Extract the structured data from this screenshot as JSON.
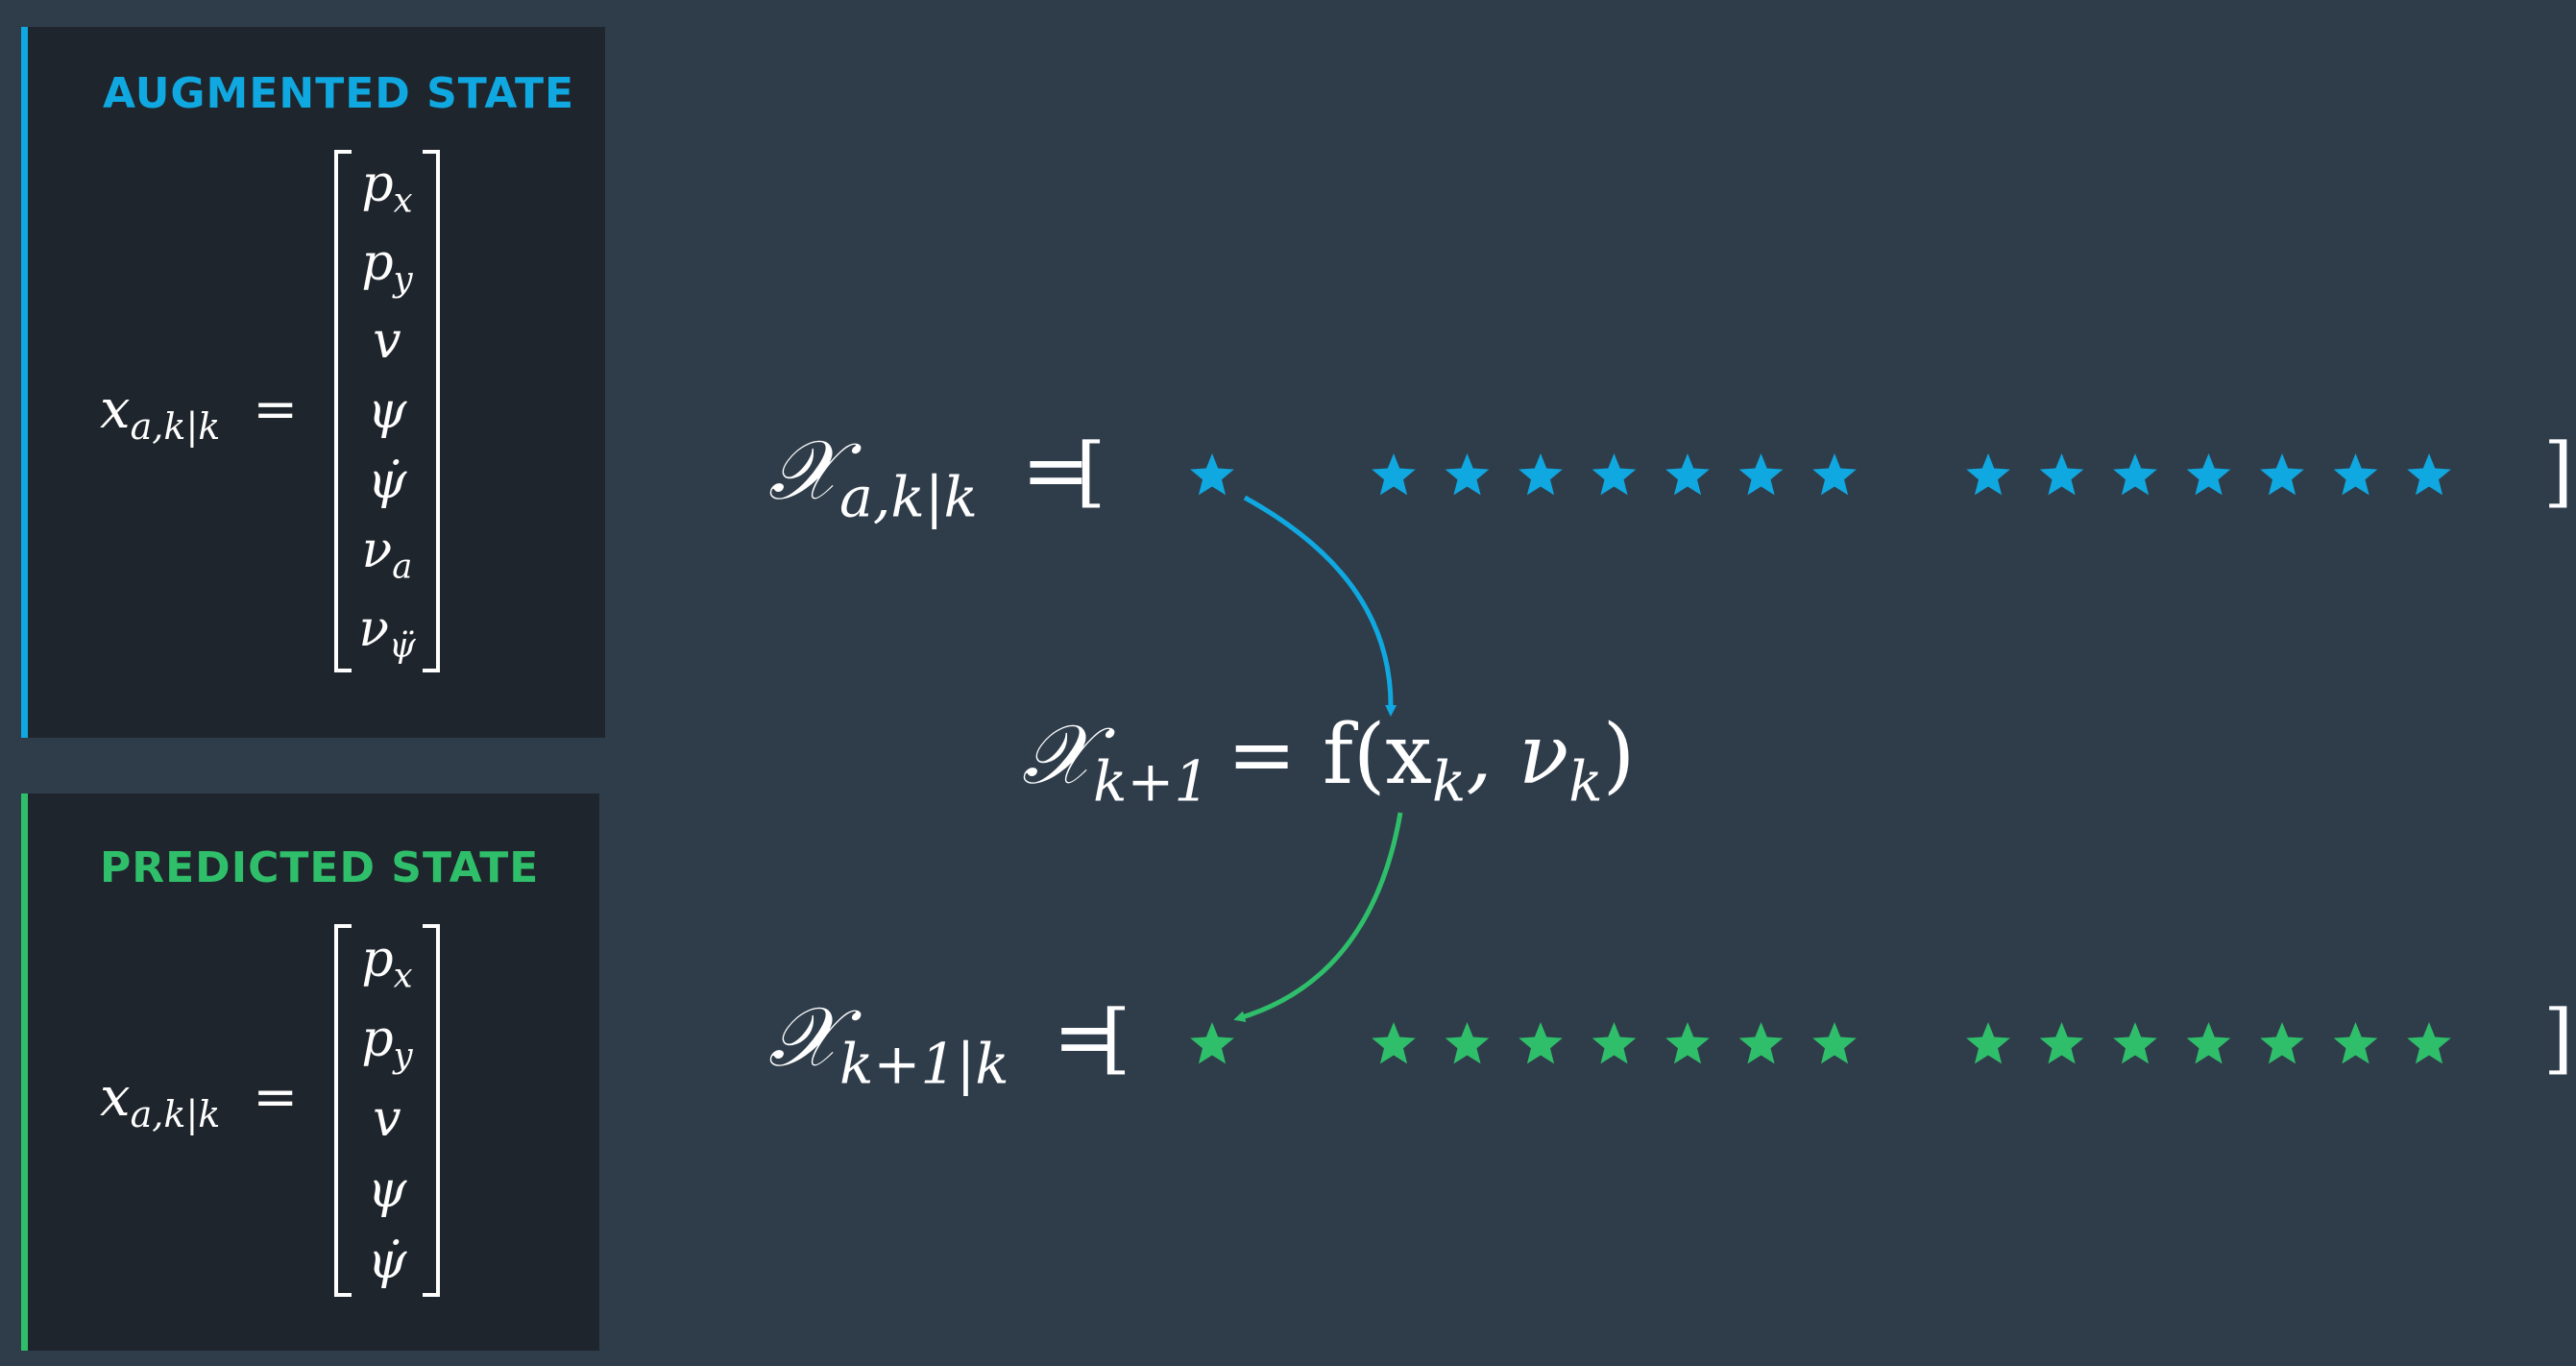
{
  "colors": {
    "background": "#2f3d4b",
    "panel": "#1f252c",
    "augmented_accent": "#10a8e0",
    "predicted_accent": "#2fbf6a"
  },
  "augmented_panel": {
    "title": "AUGMENTED STATE",
    "lhs_main": "x",
    "lhs_sub": "a,k|k",
    "equals": "=",
    "entries": [
      "p_x",
      "p_y",
      "v",
      "ψ",
      "ψ̇",
      "ν_a",
      "ν_ψ̈"
    ]
  },
  "predicted_panel": {
    "title": "PREDICTED STATE",
    "lhs_main": "x",
    "lhs_sub": "a,k|k",
    "equals": "=",
    "entries": [
      "p_x",
      "p_y",
      "v",
      "ψ",
      "ψ̇"
    ]
  },
  "sigma_row_top": {
    "lhs_main": "𝒳",
    "lhs_sub": "a,k|k",
    "equals": "=",
    "open_bracket": "[",
    "close_bracket": "]",
    "star_count": 15,
    "star_glyph": "star-icon"
  },
  "process_model": {
    "lhs_main": "𝒳",
    "lhs_sub": "k+1",
    "rhs": "= f(x",
    "rhs_sub1": "k",
    "rhs_mid": ", ν",
    "rhs_sub2": "k",
    "rhs_end": ")"
  },
  "sigma_row_bottom": {
    "lhs_main": "𝒳",
    "lhs_sub": "k+1|k",
    "equals": "=",
    "open_bracket": "[",
    "close_bracket": "]",
    "star_count": 15,
    "star_glyph": "star-icon"
  }
}
